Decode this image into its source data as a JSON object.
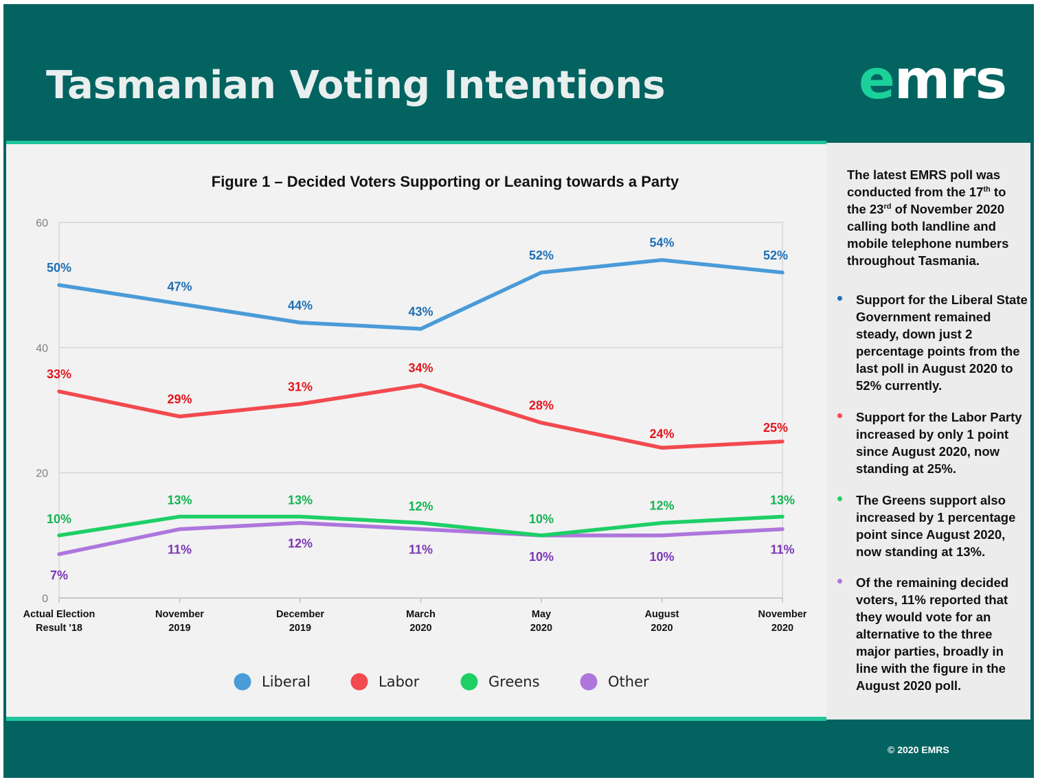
{
  "header": {
    "title": "Tasmanian Voting Intentions",
    "logo_accent": "e",
    "logo_rest": "mrs"
  },
  "chart_data": {
    "type": "line",
    "title": "Figure 1 – Decided Voters Supporting or Leaning towards a Party",
    "categories": [
      [
        "Actual Election",
        "Result '18"
      ],
      [
        "November",
        "2019"
      ],
      [
        "December",
        "2019"
      ],
      [
        "March",
        "2020"
      ],
      [
        "May",
        "2020"
      ],
      [
        "August",
        "2020"
      ],
      [
        "November",
        "2020"
      ]
    ],
    "ylim": [
      0,
      60
    ],
    "yticks": [
      0,
      20,
      40,
      60
    ],
    "grid": true,
    "legend_position": "bottom",
    "series": [
      {
        "name": "Liberal",
        "color": "#4a9bd8",
        "label_color": "#1f6fb5",
        "values": [
          50,
          47,
          44,
          43,
          52,
          54,
          52
        ],
        "labels": [
          "50%",
          "47%",
          "44%",
          "43%",
          "52%",
          "54%",
          "52%"
        ]
      },
      {
        "name": "Labor",
        "color": "#f24a4f",
        "label_color": "#e3141c",
        "values": [
          33,
          29,
          31,
          34,
          28,
          24,
          25
        ],
        "labels": [
          "33%",
          "29%",
          "31%",
          "34%",
          "28%",
          "24%",
          "25%"
        ]
      },
      {
        "name": "Greens",
        "color": "#1ecf66",
        "label_color": "#15b350",
        "values": [
          10,
          13,
          13,
          12,
          10,
          12,
          13
        ],
        "labels": [
          "10%",
          "13%",
          "13%",
          "12%",
          "10%",
          "12%",
          "13%"
        ]
      },
      {
        "name": "Other",
        "color": "#ae76dc",
        "label_color": "#7a36b4",
        "values": [
          7,
          11,
          12,
          11,
          10,
          10,
          11
        ],
        "labels": [
          "7%",
          "11%",
          "12%",
          "11%",
          "10%",
          "10%",
          "11%"
        ]
      }
    ]
  },
  "sidebar": {
    "intro_parts": [
      "The latest EMRS poll was conducted from the 17",
      "th",
      " to the 23",
      "rd",
      " of November 2020 calling both landline and mobile telephone numbers throughout Tasmania."
    ],
    "bullets": [
      {
        "text": "Support for the Liberal State Government remained steady, down just 2 percentage points from the last poll in August 2020 to 52% currently.",
        "color": "#1f6fb5"
      },
      {
        "text": "Support for the Labor Party increased by only 1 point since August 2020, now standing at 25%.",
        "color": "#f24a4f"
      },
      {
        "text": "The Greens support also increased by 1 percentage point since August 2020, now standing at 13%.",
        "color": "#1ecf66"
      },
      {
        "text": "Of the remaining decided voters, 11% reported that they would vote for an alternative to the three major parties, broadly in line with the figure in the August 2020 poll.",
        "color": "#ae76dc"
      }
    ]
  },
  "footer": {
    "copyright": "© 2020 EMRS"
  }
}
